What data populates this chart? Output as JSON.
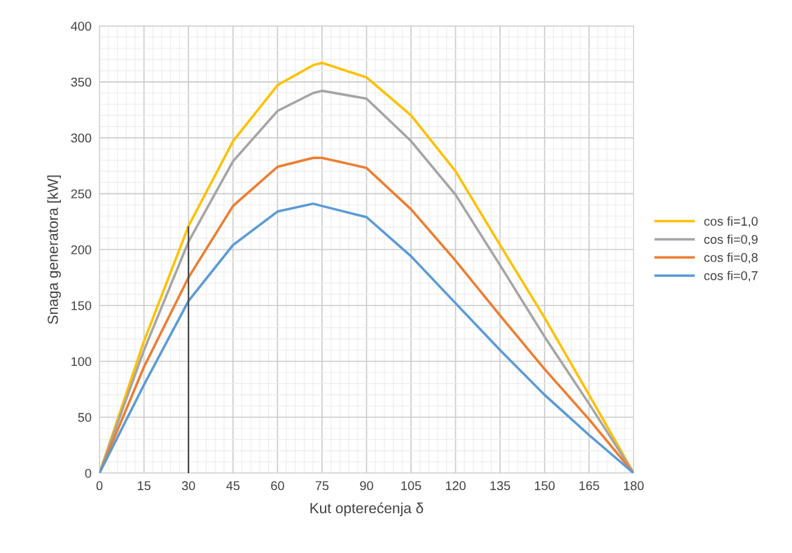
{
  "chart_data": {
    "type": "line",
    "xlabel": "Kut opterećenja δ",
    "ylabel": "Snaga generatora [kW]",
    "x": [
      0,
      15,
      30,
      45,
      60,
      72,
      75,
      90,
      105,
      120,
      135,
      150,
      165,
      180
    ],
    "series": [
      {
        "name": "cos fi=1,0",
        "color": "#ffc000",
        "values": [
          0,
          118,
          221,
          297,
          347,
          365,
          367,
          354,
          320,
          270,
          204,
          139,
          70,
          0
        ]
      },
      {
        "name": "cos fi=0,9",
        "color": "#a5a5a5",
        "values": [
          0,
          110,
          207,
          279,
          324,
          340,
          342,
          335,
          297,
          249,
          186,
          122,
          62,
          0
        ]
      },
      {
        "name": "cos fi=0,8",
        "color": "#ed7d31",
        "values": [
          0,
          95,
          175,
          239,
          274,
          282,
          282,
          273,
          236,
          190,
          141,
          93,
          48,
          0
        ]
      },
      {
        "name": "cos fi=0,7",
        "color": "#5b9bd5",
        "values": [
          0,
          79,
          154,
          204,
          234,
          241,
          239,
          229,
          194,
          152,
          110,
          70,
          34,
          0
        ]
      },
      {
        "type": "line",
        "color": "#404040",
        "x": [
          30,
          30
        ],
        "values": [
          0,
          220
        ]
      }
    ],
    "xlim": [
      0,
      180
    ],
    "xticks": [
      0,
      15,
      30,
      45,
      60,
      75,
      90,
      105,
      120,
      135,
      150,
      165,
      180
    ],
    "ylim": [
      0,
      400
    ],
    "yticks": [
      0,
      50,
      100,
      150,
      200,
      250,
      300,
      350,
      400
    ],
    "grid": true,
    "legend": "right",
    "marker": "none",
    "line_style": "solid"
  }
}
